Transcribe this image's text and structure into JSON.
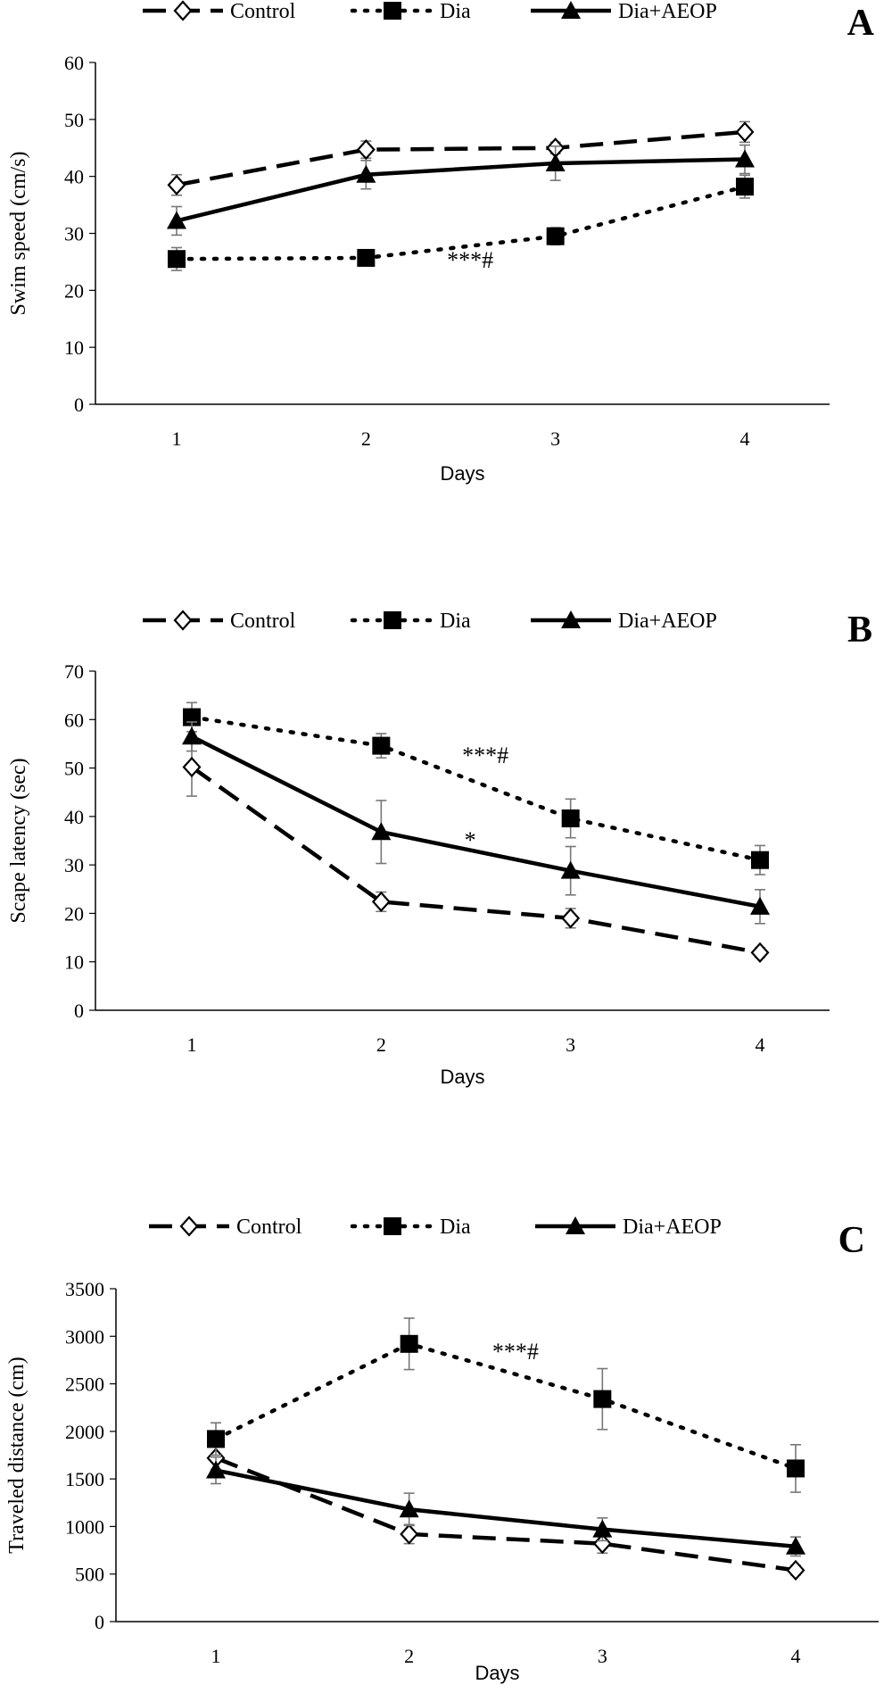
{
  "chart_data": [
    {
      "type": "line",
      "panel_label": "A",
      "xlabel": "Days",
      "ylabel": "Swim speed (cm/s)",
      "x": [
        1,
        2,
        3,
        4
      ],
      "ylim": [
        0,
        60
      ],
      "yticks": [
        0,
        10,
        20,
        30,
        40,
        50,
        60
      ],
      "legend_placement": "top",
      "series": [
        {
          "name": "Control",
          "style": "dashed",
          "marker": "open-diamond",
          "values": [
            38.5,
            44.7,
            45.0,
            47.8
          ],
          "errors": [
            1.8,
            1.5,
            1.0,
            1.8
          ]
        },
        {
          "name": "Dia",
          "style": "dotted",
          "marker": "filled-square",
          "values": [
            25.5,
            25.7,
            29.5,
            38.2
          ],
          "errors": [
            2.0,
            1.0,
            1.5,
            2.0
          ]
        },
        {
          "name": "Dia+AEOP",
          "style": "solid",
          "marker": "filled-triangle",
          "values": [
            32.2,
            40.3,
            42.3,
            43.0
          ],
          "errors": [
            2.5,
            2.5,
            3.0,
            2.5
          ]
        }
      ],
      "annotations": [
        {
          "text": "***#",
          "x": 2.55,
          "y": 24
        }
      ]
    },
    {
      "type": "line",
      "panel_label": "B",
      "xlabel": "Days",
      "ylabel": "Scape latency (sec)",
      "x": [
        1,
        2,
        3,
        4
      ],
      "ylim": [
        0,
        70
      ],
      "yticks": [
        0,
        10,
        20,
        30,
        40,
        50,
        60,
        70
      ],
      "legend_placement": "top",
      "series": [
        {
          "name": "Control",
          "style": "dashed",
          "marker": "open-diamond",
          "values": [
            50.2,
            22.4,
            19.0,
            11.9
          ],
          "errors": [
            6.0,
            2.0,
            2.0,
            1.0
          ]
        },
        {
          "name": "Dia",
          "style": "dotted",
          "marker": "filled-square",
          "values": [
            60.5,
            54.6,
            39.6,
            31.0
          ],
          "errors": [
            3.0,
            2.5,
            4.0,
            3.0
          ]
        },
        {
          "name": "Dia+AEOP",
          "style": "solid",
          "marker": "filled-triangle",
          "values": [
            56.5,
            36.8,
            28.8,
            21.4
          ],
          "errors": [
            3.0,
            6.5,
            5.0,
            3.5
          ]
        }
      ],
      "annotations": [
        {
          "text": "***#",
          "x": 2.55,
          "y": 51
        },
        {
          "text": "*",
          "x": 2.47,
          "y": 33.5
        }
      ]
    },
    {
      "type": "line",
      "panel_label": "C",
      "xlabel": "Days",
      "ylabel": "Traveled distance (cm)",
      "x": [
        1,
        2,
        3,
        4
      ],
      "ylim": [
        0,
        3500
      ],
      "yticks": [
        0,
        500,
        1000,
        1500,
        2000,
        2500,
        3000,
        3500
      ],
      "legend_placement": "top",
      "series": [
        {
          "name": "Control",
          "style": "dashed",
          "marker": "open-diamond",
          "values": [
            1720,
            920,
            820,
            540
          ],
          "errors": [
            120,
            100,
            100,
            50
          ]
        },
        {
          "name": "Dia",
          "style": "dotted",
          "marker": "filled-square",
          "values": [
            1920,
            2920,
            2340,
            1610
          ],
          "errors": [
            170,
            270,
            320,
            250
          ]
        },
        {
          "name": "Dia+AEOP",
          "style": "solid",
          "marker": "filled-triangle",
          "values": [
            1590,
            1180,
            970,
            790
          ],
          "errors": [
            140,
            170,
            120,
            100
          ]
        }
      ],
      "annotations": [
        {
          "text": "***#",
          "x": 2.55,
          "y": 2760
        }
      ]
    }
  ]
}
